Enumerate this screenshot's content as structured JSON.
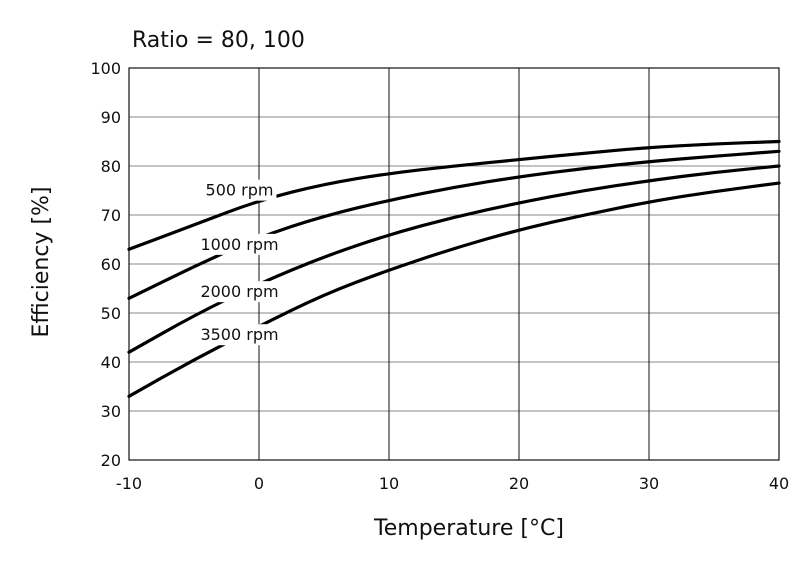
{
  "chart_data": {
    "type": "line",
    "title": "Ratio = 80, 100",
    "xlabel": "Temperature [°C]",
    "ylabel": "Efficiency [%]",
    "xlim": [
      -10,
      40
    ],
    "ylim": [
      20,
      100
    ],
    "xticks": [
      "-10",
      "0",
      "10",
      "20",
      "30",
      "40"
    ],
    "yticks": [
      "20",
      "30",
      "40",
      "50",
      "60",
      "70",
      "80",
      "90",
      "100"
    ],
    "grid": true,
    "series": [
      {
        "name": "500 rpm",
        "x": [
          -10,
          -5,
          0,
          5,
          10,
          15,
          20,
          25,
          30,
          35,
          40
        ],
        "y": [
          63,
          68,
          73,
          76.3,
          78.5,
          80,
          81.3,
          82.6,
          83.8,
          84.5,
          85
        ]
      },
      {
        "name": "1000 rpm",
        "x": [
          -10,
          -5,
          0,
          5,
          10,
          15,
          20,
          25,
          30,
          35,
          40
        ],
        "y": [
          53,
          59.5,
          65.5,
          69.8,
          73,
          75.7,
          77.8,
          79.5,
          80.9,
          82,
          83
        ]
      },
      {
        "name": "2000 rpm",
        "x": [
          -10,
          -5,
          0,
          5,
          10,
          15,
          20,
          25,
          30,
          35,
          40
        ],
        "y": [
          42,
          49.5,
          56,
          61.5,
          66,
          69.6,
          72.5,
          75,
          77,
          78.7,
          80
        ]
      },
      {
        "name": "3500 rpm",
        "x": [
          -10,
          -5,
          0,
          5,
          10,
          15,
          20,
          25,
          30,
          35,
          40
        ],
        "y": [
          33,
          40.5,
          47.3,
          53.8,
          58.8,
          63.2,
          67,
          70,
          72.7,
          74.8,
          76.5
        ]
      }
    ]
  }
}
